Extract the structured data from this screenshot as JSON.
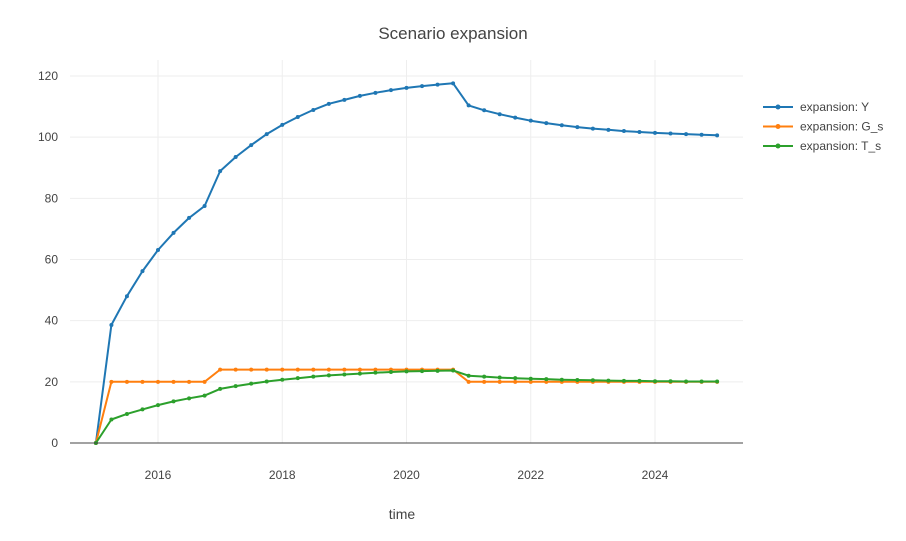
{
  "chart_data": {
    "type": "line",
    "title": "Scenario expansion",
    "xlabel": "time",
    "ylabel": "",
    "xlim": [
      "2014-08",
      "2025-06"
    ],
    "ylim": [
      -4,
      125
    ],
    "x_ticks": [
      "2016",
      "2018",
      "2020",
      "2022",
      "2024"
    ],
    "y_ticks": [
      0,
      20,
      40,
      60,
      80,
      100,
      120
    ],
    "grid": true,
    "legend_position": "right",
    "x": [
      "2015-01",
      "2015-04",
      "2015-07",
      "2015-10",
      "2016-01",
      "2016-04",
      "2016-07",
      "2016-10",
      "2017-01",
      "2017-04",
      "2017-07",
      "2017-10",
      "2018-01",
      "2018-04",
      "2018-07",
      "2018-10",
      "2019-01",
      "2019-04",
      "2019-07",
      "2019-10",
      "2020-01",
      "2020-04",
      "2020-07",
      "2020-10",
      "2021-01",
      "2021-04",
      "2021-07",
      "2021-10",
      "2022-01",
      "2022-04",
      "2022-07",
      "2022-10",
      "2023-01",
      "2023-04",
      "2023-07",
      "2023-10",
      "2024-01",
      "2024-04",
      "2024-07",
      "2024-10",
      "2025-01"
    ],
    "series": [
      {
        "name": "expansion: Y",
        "color": "#1f77b4",
        "values": [
          0,
          38.6,
          48,
          56.2,
          63.1,
          68.7,
          73.6,
          77.5,
          88.9,
          93.5,
          97.4,
          101,
          104,
          106.6,
          108.9,
          110.9,
          112.2,
          113.5,
          114.5,
          115.4,
          116.1,
          116.7,
          117.2,
          117.6,
          110.4,
          108.8,
          107.5,
          106.4,
          105.4,
          104.6,
          103.9,
          103.3,
          102.8,
          102.4,
          102,
          101.7,
          101.4,
          101.2,
          101,
          100.8,
          100.6
        ]
      },
      {
        "name": "expansion: G_s",
        "color": "#ff7f0e",
        "values": [
          0,
          20,
          20,
          20,
          20,
          20,
          20,
          20,
          24,
          24,
          24,
          24,
          24,
          24,
          24,
          24,
          24,
          24,
          24,
          24,
          24,
          24,
          24,
          24,
          20,
          20,
          20,
          20,
          20,
          20,
          20,
          20,
          20,
          20,
          20,
          20,
          20,
          20,
          20,
          20,
          20
        ]
      },
      {
        "name": "expansion: T_s",
        "color": "#2ca02c",
        "values": [
          0,
          7.7,
          9.5,
          11,
          12.4,
          13.6,
          14.6,
          15.5,
          17.7,
          18.6,
          19.4,
          20.1,
          20.7,
          21.2,
          21.7,
          22.1,
          22.4,
          22.7,
          23,
          23.2,
          23.4,
          23.5,
          23.6,
          23.7,
          22,
          21.7,
          21.4,
          21.2,
          21,
          20.9,
          20.7,
          20.6,
          20.5,
          20.4,
          20.3,
          20.3,
          20.2,
          20.2,
          20.1,
          20.1,
          20.1
        ]
      }
    ]
  }
}
